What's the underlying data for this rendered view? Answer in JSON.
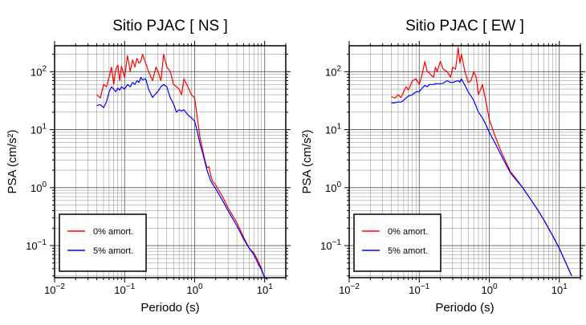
{
  "chart_data": [
    {
      "type": "line",
      "title": "Sitio PJAC [ NS ]",
      "xlabel": "Periodo (s)",
      "ylabel": "PSA (cm/s²)",
      "xscale": "log",
      "yscale": "log",
      "xlim": [
        0.01,
        20
      ],
      "ylim": [
        0.028,
        280
      ],
      "xtick_labels": [
        {
          "base": "10",
          "exp": "−2",
          "value": 0.01
        },
        {
          "base": "10",
          "exp": "−1",
          "value": 0.1
        },
        {
          "base": "10",
          "exp": "0",
          "value": 1
        },
        {
          "base": "10",
          "exp": "1",
          "value": 10
        }
      ],
      "ytick_labels": [
        {
          "base": "10",
          "exp": "−1",
          "value": 0.1
        },
        {
          "base": "10",
          "exp": "0",
          "value": 1
        },
        {
          "base": "10",
          "exp": "1",
          "value": 10
        },
        {
          "base": "10",
          "exp": "2",
          "value": 100
        }
      ],
      "grid": true,
      "legend_position": "bottom-left",
      "series": [
        {
          "name": "0% amort.",
          "color": "#ff0000",
          "x": [
            0.04,
            0.045,
            0.05,
            0.055,
            0.06,
            0.065,
            0.07,
            0.075,
            0.08,
            0.085,
            0.09,
            0.1,
            0.11,
            0.12,
            0.13,
            0.14,
            0.15,
            0.16,
            0.17,
            0.18,
            0.2,
            0.22,
            0.25,
            0.28,
            0.3,
            0.33,
            0.36,
            0.4,
            0.45,
            0.5,
            0.55,
            0.6,
            0.65,
            0.7,
            0.8,
            0.9,
            1.0,
            1.1,
            1.2,
            1.3,
            1.4,
            1.5,
            1.6,
            1.7,
            1.8,
            2.0,
            2.5,
            3.0,
            4.0,
            5.0,
            6.0,
            7.0,
            8.0,
            9.0,
            10.0,
            11.0
          ],
          "y": [
            40,
            35,
            60,
            55,
            80,
            120,
            60,
            110,
            130,
            70,
            125,
            80,
            190,
            100,
            160,
            120,
            170,
            140,
            150,
            200,
            140,
            100,
            70,
            120,
            100,
            70,
            200,
            120,
            100,
            60,
            55,
            50,
            40,
            75,
            55,
            40,
            35,
            15,
            7,
            4.5,
            3.0,
            2.2,
            2.3,
            1.6,
            1.3,
            1.1,
            0.7,
            0.45,
            0.25,
            0.14,
            0.09,
            0.075,
            0.055,
            0.04,
            0.028,
            0.026
          ]
        },
        {
          "name": "5% amort.",
          "color": "#0000ff",
          "x": [
            0.04,
            0.045,
            0.05,
            0.055,
            0.06,
            0.065,
            0.07,
            0.075,
            0.08,
            0.085,
            0.09,
            0.1,
            0.11,
            0.12,
            0.13,
            0.14,
            0.15,
            0.16,
            0.17,
            0.18,
            0.2,
            0.22,
            0.25,
            0.28,
            0.3,
            0.33,
            0.36,
            0.4,
            0.45,
            0.5,
            0.55,
            0.6,
            0.65,
            0.7,
            0.8,
            0.9,
            1.0,
            1.1,
            1.2,
            1.3,
            1.4,
            1.5,
            1.6,
            1.7,
            1.8,
            2.0,
            2.5,
            3.0,
            4.0,
            5.0,
            6.0,
            7.0,
            8.0,
            9.0,
            10.0,
            11.0
          ],
          "y": [
            26,
            27,
            24,
            30,
            45,
            55,
            50,
            45,
            52,
            48,
            55,
            50,
            60,
            55,
            65,
            60,
            70,
            65,
            80,
            72,
            75,
            50,
            36,
            42,
            46,
            55,
            60,
            55,
            35,
            28,
            20,
            22,
            21,
            22,
            18,
            16,
            14,
            9,
            5.5,
            4,
            2.8,
            2.0,
            1.6,
            1.3,
            1.15,
            0.95,
            0.6,
            0.4,
            0.22,
            0.13,
            0.09,
            0.07,
            0.05,
            0.038,
            0.028,
            0.026
          ]
        }
      ]
    },
    {
      "type": "line",
      "title": "Sitio PJAC [ EW ]",
      "xlabel": "Periodo (s)",
      "ylabel": "PSA (cm/s²)",
      "xscale": "log",
      "yscale": "log",
      "xlim": [
        0.01,
        20
      ],
      "ylim": [
        0.028,
        280
      ],
      "xtick_labels": [
        {
          "base": "10",
          "exp": "−2",
          "value": 0.01
        },
        {
          "base": "10",
          "exp": "−1",
          "value": 0.1
        },
        {
          "base": "10",
          "exp": "0",
          "value": 1
        },
        {
          "base": "10",
          "exp": "1",
          "value": 10
        }
      ],
      "ytick_labels": [
        {
          "base": "10",
          "exp": "−1",
          "value": 0.1
        },
        {
          "base": "10",
          "exp": "0",
          "value": 1
        },
        {
          "base": "10",
          "exp": "1",
          "value": 10
        },
        {
          "base": "10",
          "exp": "2",
          "value": 100
        }
      ],
      "grid": true,
      "legend_position": "bottom-left",
      "series": [
        {
          "name": "0% amort.",
          "color": "#ff0000",
          "x": [
            0.04,
            0.045,
            0.05,
            0.055,
            0.06,
            0.065,
            0.07,
            0.08,
            0.09,
            0.1,
            0.11,
            0.12,
            0.13,
            0.14,
            0.15,
            0.16,
            0.17,
            0.18,
            0.2,
            0.22,
            0.25,
            0.28,
            0.3,
            0.33,
            0.36,
            0.38,
            0.4,
            0.45,
            0.5,
            0.55,
            0.6,
            0.65,
            0.7,
            0.8,
            0.9,
            1.0,
            1.2,
            1.5,
            2.0,
            2.5,
            3.0,
            4.0,
            5.0,
            6.0,
            7.0,
            8.0,
            10.0,
            12.0,
            15.0
          ],
          "y": [
            37,
            35,
            40,
            36,
            45,
            55,
            48,
            70,
            75,
            60,
            90,
            150,
            100,
            95,
            85,
            80,
            120,
            100,
            150,
            110,
            100,
            80,
            120,
            110,
            260,
            140,
            200,
            100,
            65,
            70,
            100,
            80,
            40,
            60,
            30,
            15,
            8,
            4,
            1.9,
            1.35,
            1.0,
            0.6,
            0.4,
            0.28,
            0.2,
            0.15,
            0.09,
            0.055,
            0.03
          ]
        },
        {
          "name": "5% amort.",
          "color": "#0000ff",
          "x": [
            0.04,
            0.045,
            0.05,
            0.055,
            0.06,
            0.065,
            0.07,
            0.08,
            0.09,
            0.1,
            0.11,
            0.12,
            0.13,
            0.14,
            0.15,
            0.16,
            0.17,
            0.18,
            0.2,
            0.22,
            0.25,
            0.28,
            0.3,
            0.33,
            0.36,
            0.38,
            0.4,
            0.45,
            0.5,
            0.55,
            0.6,
            0.65,
            0.7,
            0.8,
            0.9,
            1.0,
            1.2,
            1.5,
            2.0,
            2.5,
            3.0,
            4.0,
            5.0,
            6.0,
            7.0,
            8.0,
            10.0,
            12.0,
            15.0
          ],
          "y": [
            29,
            29,
            30,
            30,
            32,
            35,
            38,
            40,
            45,
            45,
            52,
            58,
            55,
            60,
            60,
            60,
            62,
            62,
            62,
            63,
            70,
            65,
            65,
            68,
            70,
            66,
            75,
            58,
            45,
            38,
            32,
            25,
            20,
            16,
            12,
            9,
            6,
            3.5,
            1.8,
            1.3,
            1.0,
            0.6,
            0.4,
            0.28,
            0.2,
            0.15,
            0.09,
            0.055,
            0.03
          ]
        }
      ]
    }
  ]
}
